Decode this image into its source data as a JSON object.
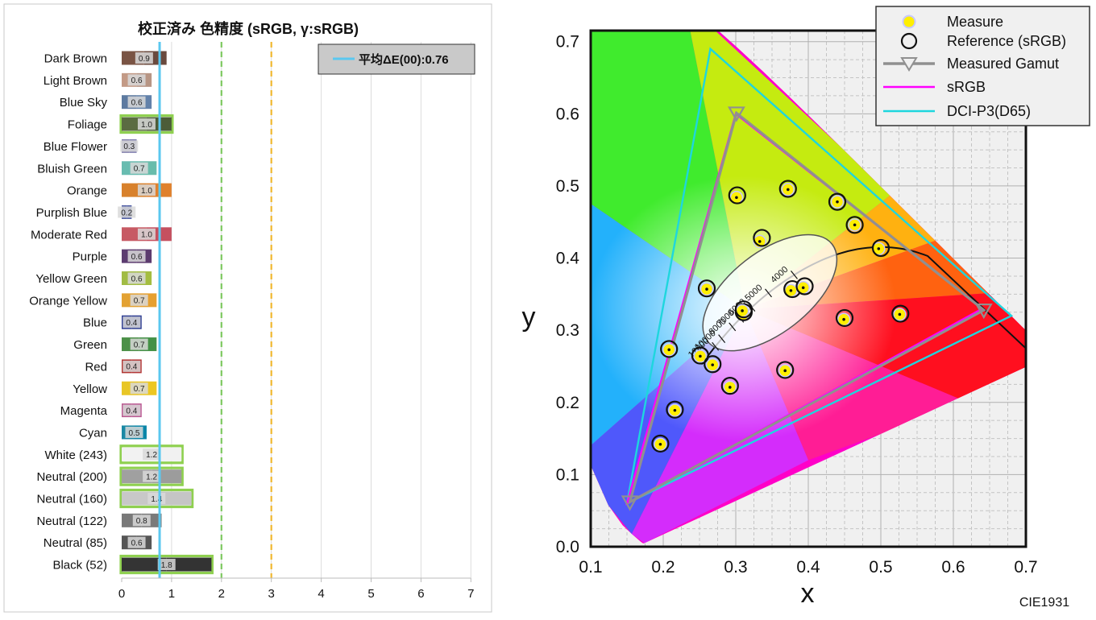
{
  "colors": {
    "avg_line": "#5bc8f0",
    "green_threshold": "#7ec860",
    "orange_threshold": "#f0b830",
    "highlight_border": "#8fd050",
    "measure_fill": "#ffef00",
    "measured_gamut": "#909090",
    "srgb": "#ff00ff",
    "dcip3": "#1ed6de"
  },
  "chart_data": [
    {
      "type": "bar",
      "title": "校正済み 色精度 (sRGB, γ:sRGB)",
      "legend": {
        "label": "平均ΔE(00):0.76",
        "placement": "top-right"
      },
      "average": 0.76,
      "thresholds": [
        2,
        3
      ],
      "xlim": [
        0,
        7
      ],
      "xticks": [
        "0",
        "1",
        "2",
        "3",
        "4",
        "5",
        "6",
        "7"
      ],
      "grid": true,
      "rows": [
        {
          "label": "Dark Brown",
          "value": 0.9,
          "text": "0.9",
          "c1": "#7a5444",
          "c2": "#6a4a3e",
          "highlight": false
        },
        {
          "label": "Light Brown",
          "value": 0.6,
          "text": "0.6",
          "c1": "#c39a86",
          "c2": "#b79584",
          "highlight": false
        },
        {
          "label": "Blue Sky",
          "value": 0.6,
          "text": "0.6",
          "c1": "#5d7aa0",
          "c2": "#6281aa",
          "highlight": false
        },
        {
          "label": "Foliage",
          "value": 1.0,
          "text": "1.0",
          "c1": "#5b6c42",
          "c2": "#4c5c38",
          "highlight": true
        },
        {
          "label": "Blue Flower",
          "value": 0.3,
          "text": "0.3",
          "c1": "#8583ae",
          "c2": "#8280b1",
          "highlight": false
        },
        {
          "label": "Bluish Green",
          "value": 0.7,
          "text": "0.7",
          "c1": "#68bcb0",
          "c2": "#68bcab",
          "highlight": false
        },
        {
          "label": "Orange",
          "value": 1.0,
          "text": "1.0",
          "c1": "#d8812c",
          "c2": "#e0812d",
          "highlight": false
        },
        {
          "label": "Purplish Blue",
          "value": 0.2,
          "text": "0.2",
          "c1": "#4c5aa4",
          "c2": "#4d5ba3",
          "highlight": false
        },
        {
          "label": "Moderate Red",
          "value": 1.0,
          "text": "1.0",
          "c1": "#c75a64",
          "c2": "#c5505f",
          "highlight": false
        },
        {
          "label": "Purple",
          "value": 0.6,
          "text": "0.6",
          "c1": "#5c3c70",
          "c2": "#5c3b6e",
          "highlight": false
        },
        {
          "label": "Yellow Green",
          "value": 0.6,
          "text": "0.6",
          "c1": "#a1bc44",
          "c2": "#a4bd40",
          "highlight": false
        },
        {
          "label": "Orange Yellow",
          "value": 0.7,
          "text": "0.7",
          "c1": "#e3a233",
          "c2": "#e6a030",
          "highlight": false
        },
        {
          "label": "Blue",
          "value": 0.4,
          "text": "0.4",
          "c1": "#303f94",
          "c2": "#2f3e92",
          "highlight": false
        },
        {
          "label": "Green",
          "value": 0.7,
          "text": "0.7",
          "c1": "#4c9048",
          "c2": "#439146",
          "highlight": false
        },
        {
          "label": "Red",
          "value": 0.4,
          "text": "0.4",
          "c1": "#b13532",
          "c2": "#b33636",
          "highlight": false
        },
        {
          "label": "Yellow",
          "value": 0.7,
          "text": "0.7",
          "c1": "#e8c626",
          "c2": "#ecc722",
          "highlight": false
        },
        {
          "label": "Magenta",
          "value": 0.4,
          "text": "0.4",
          "c1": "#ba5890",
          "c2": "#bb5793",
          "highlight": false
        },
        {
          "label": "Cyan",
          "value": 0.5,
          "text": "0.5",
          "c1": "#1a88a4",
          "c2": "#0a86a8",
          "highlight": false
        },
        {
          "label": "White (243)",
          "value": 1.2,
          "text": "1.2",
          "c1": "#f2f2f2",
          "c2": "#f1f1f1",
          "highlight": true
        },
        {
          "label": "Neutral (200)",
          "value": 1.2,
          "text": "1.2",
          "c1": "#a0a0a0",
          "c2": "#9c9c9c",
          "highlight": true
        },
        {
          "label": "Neutral (160)",
          "value": 1.4,
          "text": "1.4",
          "c1": "#c8c8c8",
          "c2": "#c5c5c5",
          "highlight": true
        },
        {
          "label": "Neutral (122)",
          "value": 0.8,
          "text": "0.8",
          "c1": "#797979",
          "c2": "#7a7a7a",
          "highlight": false
        },
        {
          "label": "Neutral (85)",
          "value": 0.6,
          "text": "0.6",
          "c1": "#555555",
          "c2": "#565656",
          "highlight": false
        },
        {
          "label": "Black (52)",
          "value": 1.8,
          "text": "1.8",
          "c1": "#343434",
          "c2": "#333333",
          "highlight": true
        }
      ]
    },
    {
      "type": "scatter",
      "xlabel": "x",
      "ylabel": "y",
      "caption": "CIE1931",
      "xlim": [
        0.1,
        0.7
      ],
      "ylim": [
        0.0,
        0.7
      ],
      "xticks": [
        "0.1",
        "0.2",
        "0.3",
        "0.4",
        "0.5",
        "0.6",
        "0.7"
      ],
      "yticks": [
        "0.0",
        "0.1",
        "0.2",
        "0.3",
        "0.4",
        "0.5",
        "0.6",
        "0.7"
      ],
      "grid": true,
      "legend": {
        "placement": "top-right",
        "items": [
          {
            "label": "Measure",
            "kind": "measure"
          },
          {
            "label": "Reference (sRGB)",
            "kind": "reference"
          },
          {
            "label": "Measured Gamut",
            "kind": "gamut"
          },
          {
            "label": "sRGB",
            "kind": "srgb"
          },
          {
            "label": "DCI-P3(D65)",
            "kind": "dcip3"
          }
        ]
      },
      "planck_labels": [
        "4000",
        "5000",
        "6000",
        "7000",
        "8000",
        "10000",
        "12000"
      ],
      "planck_cct": [
        4000,
        5000,
        6000,
        7000,
        8000,
        10000,
        12000
      ],
      "measured_gamut": [
        [
          0.642,
          0.328
        ],
        [
          0.301,
          0.601
        ],
        [
          0.154,
          0.062
        ]
      ],
      "srgb": [
        [
          0.64,
          0.33
        ],
        [
          0.3,
          0.6
        ],
        [
          0.15,
          0.06
        ]
      ],
      "dcip3": [
        [
          0.68,
          0.32
        ],
        [
          0.265,
          0.69
        ],
        [
          0.15,
          0.06
        ]
      ],
      "points": [
        {
          "x": 0.301,
          "y": 0.484,
          "rx": 0.302,
          "ry": 0.487
        },
        {
          "x": 0.372,
          "y": 0.495,
          "rx": 0.372,
          "ry": 0.496
        },
        {
          "x": 0.44,
          "y": 0.478,
          "rx": 0.44,
          "ry": 0.478
        },
        {
          "x": 0.464,
          "y": 0.446,
          "rx": 0.464,
          "ry": 0.446
        },
        {
          "x": 0.497,
          "y": 0.413,
          "rx": 0.5,
          "ry": 0.414
        },
        {
          "x": 0.333,
          "y": 0.423,
          "rx": 0.336,
          "ry": 0.428
        },
        {
          "x": 0.26,
          "y": 0.357,
          "rx": 0.26,
          "ry": 0.358
        },
        {
          "x": 0.31,
          "y": 0.322,
          "rx": 0.311,
          "ry": 0.325
        },
        {
          "x": 0.309,
          "y": 0.327,
          "rx": 0.311,
          "ry": 0.329
        },
        {
          "x": 0.376,
          "y": 0.355,
          "rx": 0.378,
          "ry": 0.357
        },
        {
          "x": 0.393,
          "y": 0.359,
          "rx": 0.395,
          "ry": 0.361
        },
        {
          "x": 0.449,
          "y": 0.315,
          "rx": 0.45,
          "ry": 0.317
        },
        {
          "x": 0.526,
          "y": 0.322,
          "rx": 0.527,
          "ry": 0.323
        },
        {
          "x": 0.208,
          "y": 0.273,
          "rx": 0.208,
          "ry": 0.274
        },
        {
          "x": 0.251,
          "y": 0.264,
          "rx": 0.251,
          "ry": 0.265
        },
        {
          "x": 0.268,
          "y": 0.252,
          "rx": 0.268,
          "ry": 0.253
        },
        {
          "x": 0.368,
          "y": 0.244,
          "rx": 0.368,
          "ry": 0.245
        },
        {
          "x": 0.292,
          "y": 0.221,
          "rx": 0.292,
          "ry": 0.223
        },
        {
          "x": 0.216,
          "y": 0.189,
          "rx": 0.216,
          "ry": 0.19
        },
        {
          "x": 0.196,
          "y": 0.142,
          "rx": 0.196,
          "ry": 0.143
        }
      ]
    }
  ]
}
